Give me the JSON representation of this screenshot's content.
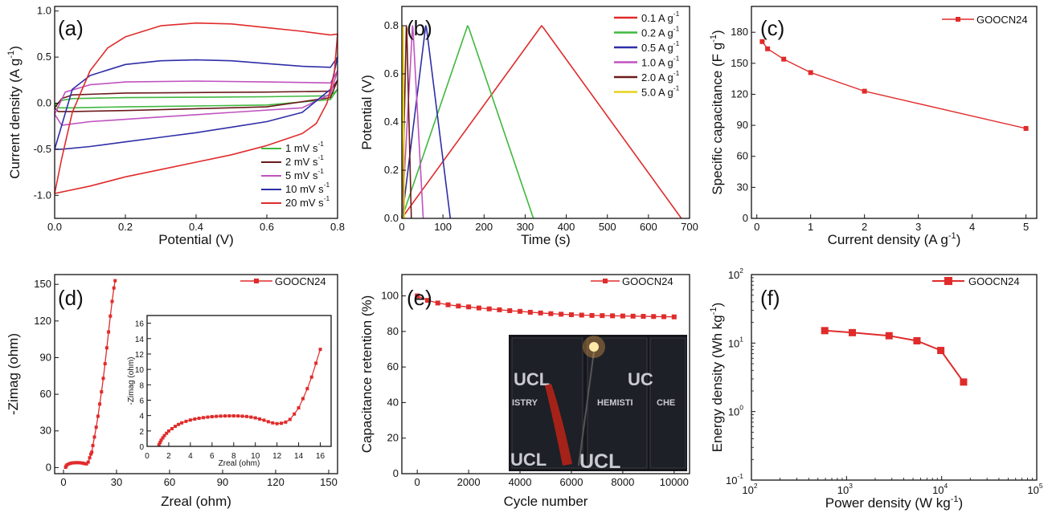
{
  "chart_data": [
    {
      "panel": "(a)",
      "type": "line",
      "xlabel": "Potential (V)",
      "ylabel": "Current density (A g⁻¹)",
      "xlim": [
        0,
        0.8
      ],
      "ylim": [
        -1.25,
        1.05
      ],
      "xticks": [
        0.0,
        0.2,
        0.4,
        0.6,
        0.8
      ],
      "yticks": [
        -1.0,
        -0.5,
        0.0,
        0.5,
        1.0
      ],
      "legend": "bottom-right",
      "series": [
        {
          "name": "1 mV s⁻¹",
          "color": "#3fb83f",
          "x_upper": [
            0.0,
            0.02,
            0.05,
            0.2,
            0.4,
            0.6,
            0.78,
            0.8
          ],
          "y_upper": [
            -0.02,
            0.03,
            0.05,
            0.06,
            0.065,
            0.07,
            0.08,
            0.15
          ],
          "x_lower": [
            0.8,
            0.78,
            0.6,
            0.4,
            0.2,
            0.05,
            0.01,
            0.0
          ],
          "y_lower": [
            0.15,
            0.04,
            -0.02,
            -0.03,
            -0.04,
            -0.05,
            -0.05,
            -0.02
          ]
        },
        {
          "name": "2 mV s⁻¹",
          "color": "#6b1a1a",
          "x_upper": [
            0.0,
            0.02,
            0.05,
            0.2,
            0.4,
            0.6,
            0.78,
            0.8
          ],
          "y_upper": [
            -0.05,
            0.05,
            0.09,
            0.11,
            0.115,
            0.12,
            0.13,
            0.25
          ],
          "x_lower": [
            0.8,
            0.78,
            0.6,
            0.4,
            0.2,
            0.05,
            0.01,
            0.0
          ],
          "y_lower": [
            0.25,
            0.06,
            -0.04,
            -0.06,
            -0.08,
            -0.09,
            -0.09,
            -0.05
          ]
        },
        {
          "name": "5 mV s⁻¹",
          "color": "#c052c0",
          "x_upper": [
            0.0,
            0.03,
            0.1,
            0.2,
            0.4,
            0.6,
            0.78,
            0.8
          ],
          "y_upper": [
            -0.12,
            0.12,
            0.2,
            0.23,
            0.24,
            0.23,
            0.22,
            0.35
          ],
          "x_lower": [
            0.8,
            0.78,
            0.7,
            0.5,
            0.3,
            0.1,
            0.02,
            0.0
          ],
          "y_lower": [
            0.35,
            0.1,
            -0.05,
            -0.1,
            -0.15,
            -0.2,
            -0.24,
            -0.12
          ]
        },
        {
          "name": "10 mV s⁻¹",
          "color": "#2e2ea8",
          "x_upper": [
            0.0,
            0.05,
            0.1,
            0.2,
            0.3,
            0.4,
            0.5,
            0.6,
            0.7,
            0.78,
            0.8
          ],
          "y_upper": [
            -0.5,
            0.15,
            0.3,
            0.42,
            0.46,
            0.47,
            0.46,
            0.43,
            0.4,
            0.39,
            0.5
          ],
          "x_lower": [
            0.8,
            0.78,
            0.7,
            0.6,
            0.5,
            0.4,
            0.3,
            0.2,
            0.1,
            0.02,
            0.0
          ],
          "y_lower": [
            0.5,
            0.15,
            -0.1,
            -0.2,
            -0.26,
            -0.32,
            -0.37,
            -0.42,
            -0.47,
            -0.5,
            -0.5
          ]
        },
        {
          "name": "20 mV s⁻¹",
          "color": "#e02b2b",
          "x_upper": [
            0.0,
            0.02,
            0.05,
            0.1,
            0.15,
            0.2,
            0.3,
            0.4,
            0.5,
            0.6,
            0.7,
            0.78,
            0.8
          ],
          "y_upper": [
            -0.98,
            -0.6,
            -0.1,
            0.35,
            0.6,
            0.72,
            0.84,
            0.87,
            0.86,
            0.82,
            0.78,
            0.74,
            0.75
          ],
          "x_lower": [
            0.8,
            0.79,
            0.77,
            0.74,
            0.7,
            0.6,
            0.5,
            0.4,
            0.3,
            0.2,
            0.1,
            0.0
          ],
          "y_lower": [
            0.75,
            0.3,
            0.0,
            -0.22,
            -0.33,
            -0.46,
            -0.56,
            -0.64,
            -0.72,
            -0.8,
            -0.9,
            -0.98
          ]
        }
      ]
    },
    {
      "panel": "(b)",
      "type": "line",
      "xlabel": "Time (s)",
      "ylabel": "Potential (V)",
      "xlim": [
        0,
        700
      ],
      "ylim": [
        0,
        0.88
      ],
      "xticks": [
        0,
        100,
        200,
        300,
        400,
        500,
        600,
        700
      ],
      "yticks": [
        0.0,
        0.2,
        0.4,
        0.6,
        0.8
      ],
      "legend": "top-right",
      "series": [
        {
          "name": "0.1 A g⁻¹",
          "color": "#e02b2b",
          "x": [
            0,
            8,
            340,
            345,
            680
          ],
          "y": [
            0.0,
            0.02,
            0.8,
            0.79,
            0.0
          ]
        },
        {
          "name": "0.2 A g⁻¹",
          "color": "#3fb83f",
          "x": [
            0,
            4,
            160,
            163,
            320
          ],
          "y": [
            0.0,
            0.02,
            0.8,
            0.79,
            0.0
          ]
        },
        {
          "name": "0.5 A g⁻¹",
          "color": "#2e2ea8",
          "x": [
            0,
            2,
            58,
            60,
            118
          ],
          "y": [
            0.0,
            0.02,
            0.8,
            0.79,
            0.0
          ]
        },
        {
          "name": "1.0 A g⁻¹",
          "color": "#c052c0",
          "x": [
            0,
            1,
            26,
            27,
            52
          ],
          "y": [
            0.0,
            0.02,
            0.8,
            0.79,
            0.0
          ]
        },
        {
          "name": "2.0 A g⁻¹",
          "color": "#6b1a1a",
          "x": [
            0,
            1,
            11,
            12,
            23
          ],
          "y": [
            0.0,
            0.02,
            0.8,
            0.79,
            0.0
          ]
        },
        {
          "name": "5.0 A g⁻¹",
          "color": "#e8d21c",
          "x": [
            0,
            0.5,
            3,
            3.5,
            6
          ],
          "y": [
            0.0,
            0.02,
            0.8,
            0.79,
            0.0
          ]
        }
      ]
    },
    {
      "panel": "(c)",
      "type": "line",
      "xlabel": "Current density (A g⁻¹)",
      "ylabel": "Specific capacitance (F g⁻¹)",
      "xlim": [
        -0.1,
        5.2
      ],
      "ylim": [
        0,
        205
      ],
      "xticks": [
        0,
        1,
        2,
        3,
        4,
        5
      ],
      "yticks": [
        0,
        30,
        60,
        90,
        120,
        150,
        180
      ],
      "legend": "top-right",
      "series": [
        {
          "name": "GOOCN24",
          "color": "#e02b2b",
          "marker": "square",
          "x": [
            0.1,
            0.2,
            0.5,
            1.0,
            2.0,
            5.0
          ],
          "y": [
            171,
            164,
            154,
            141,
            123,
            87
          ]
        }
      ]
    },
    {
      "panel": "(d)",
      "type": "line",
      "xlabel": "Zreal (ohm)",
      "ylabel": "-Zimag (ohm)",
      "xlim": [
        -5,
        155
      ],
      "ylim": [
        -5,
        158
      ],
      "xticks": [
        0,
        30,
        60,
        90,
        120,
        150
      ],
      "yticks": [
        0,
        30,
        60,
        90,
        120,
        150
      ],
      "legend": "top-right",
      "series": [
        {
          "name": "GOOCN24",
          "color": "#e02b2b",
          "marker": "square",
          "x": [
            1.2,
            1.5,
            2.0,
            3.0,
            4.0,
            5.0,
            6.0,
            7.0,
            8.0,
            9.0,
            10.0,
            11.0,
            12.0,
            13.0,
            14.0,
            14.8,
            15.5,
            16.0,
            16.6,
            17.5,
            18.5,
            19.5,
            20.5,
            21.5,
            22.5,
            23.5,
            24.5,
            25.5,
            26.5,
            27.5,
            28.5,
            29.2
          ],
          "y": [
            0.2,
            1.2,
            2.2,
            3.0,
            3.5,
            3.8,
            3.9,
            4.0,
            4.0,
            3.95,
            3.8,
            3.6,
            3.2,
            3.0,
            4.5,
            8.0,
            11.0,
            12.6,
            18.0,
            25.0,
            33.0,
            42.0,
            52.0,
            62.0,
            73.0,
            85.0,
            98.0,
            111.0,
            124.0,
            136.0,
            147.0,
            153.0
          ]
        },
        {
          "name": "",
          "inset": true,
          "color": "#e02b2b",
          "marker": "square",
          "xlabel": "Zreal (ohm)",
          "ylabel": "-Zimag (ohm)",
          "xlim": [
            0,
            17
          ],
          "ylim": [
            0,
            17
          ],
          "xticks": [
            0,
            2,
            4,
            6,
            8,
            10,
            12,
            14,
            16
          ],
          "yticks": [
            0,
            2,
            4,
            6,
            8,
            10,
            12,
            14,
            16
          ],
          "x": [
            1.1,
            1.2,
            1.3,
            1.45,
            1.6,
            1.8,
            2.0,
            2.3,
            2.6,
            2.9,
            3.2,
            3.6,
            4.0,
            4.4,
            4.8,
            5.2,
            5.6,
            6.0,
            6.4,
            6.8,
            7.2,
            7.6,
            8.0,
            8.4,
            8.8,
            9.2,
            9.6,
            10.0,
            10.4,
            10.8,
            11.2,
            11.6,
            12.0,
            12.4,
            12.8,
            13.2,
            13.6,
            14.0,
            14.4,
            14.8,
            15.2,
            15.6,
            16.0
          ],
          "y": [
            0.2,
            0.5,
            0.8,
            1.1,
            1.4,
            1.7,
            2.0,
            2.3,
            2.6,
            2.85,
            3.05,
            3.25,
            3.42,
            3.55,
            3.65,
            3.73,
            3.8,
            3.86,
            3.9,
            3.93,
            3.95,
            3.96,
            3.96,
            3.95,
            3.92,
            3.88,
            3.8,
            3.7,
            3.55,
            3.4,
            3.2,
            3.05,
            2.95,
            3.0,
            3.15,
            3.5,
            4.2,
            5.0,
            6.2,
            7.5,
            9.0,
            10.8,
            12.6
          ]
        }
      ]
    },
    {
      "panel": "(e)",
      "type": "line",
      "xlabel": "Cycle number",
      "ylabel": "Capacitance retention (%)",
      "xlim": [
        -600,
        10600
      ],
      "ylim": [
        0,
        112
      ],
      "xticks": [
        0,
        2000,
        4000,
        6000,
        8000,
        10000
      ],
      "yticks": [
        0,
        20,
        40,
        60,
        80,
        100
      ],
      "legend": "top-right",
      "series": [
        {
          "name": "GOOCN24",
          "color": "#e02b2b",
          "marker": "square",
          "x": [
            0,
            400,
            800,
            1200,
            1600,
            2000,
            2400,
            2800,
            3200,
            3600,
            4000,
            4400,
            4800,
            5200,
            5600,
            6000,
            6400,
            6800,
            7200,
            7600,
            8000,
            8400,
            8800,
            9200,
            9600,
            10000
          ],
          "y": [
            100,
            97.5,
            96.0,
            95.0,
            94.3,
            93.8,
            93.2,
            92.7,
            92.2,
            91.7,
            91.3,
            90.8,
            90.4,
            90.0,
            89.7,
            89.4,
            89.2,
            89.0,
            88.9,
            88.8,
            88.7,
            88.6,
            88.5,
            88.4,
            88.3,
            88.2
          ]
        }
      ],
      "inset_photo": {
        "texts": [
          "UCL",
          "UC",
          "ISTRY",
          "HEMISTI",
          "CHE",
          "UCL",
          "UCL"
        ]
      }
    },
    {
      "panel": "(f)",
      "type": "line",
      "xlabel": "Power density (W kg⁻¹)",
      "ylabel": "Energy density (Wh kg⁻¹)",
      "xscale": "log",
      "yscale": "log",
      "xlim": [
        100,
        100000
      ],
      "ylim": [
        0.1,
        100
      ],
      "xticks": [
        100,
        1000,
        10000,
        100000
      ],
      "yticks": [
        0.1,
        1,
        10,
        100
      ],
      "legend": "top-right",
      "series": [
        {
          "name": "GOOCN24",
          "color": "#e02b2b",
          "marker": "square",
          "x": [
            590,
            1150,
            2800,
            5500,
            9800,
            17000
          ],
          "y": [
            15.2,
            14.2,
            12.8,
            10.8,
            7.8,
            2.7
          ]
        }
      ]
    }
  ],
  "panels": {
    "a": {
      "label": "(a)",
      "xlabel": "Potential (V)",
      "ylabel_main": "Current density (A g",
      "ylabel_sup": "-1",
      "ylabel_end": ")",
      "xtick_labels": [
        "0.0",
        "0.2",
        "0.4",
        "0.6",
        "0.8"
      ],
      "ytick_labels": [
        "-1.0",
        "-0.5",
        "0.0",
        "0.5",
        "1.0"
      ],
      "legend": [
        {
          "main": "1 mV s",
          "sup": "-1"
        },
        {
          "main": "2 mV s",
          "sup": "-1"
        },
        {
          "main": "5 mV s",
          "sup": "-1"
        },
        {
          "main": "10 mV s",
          "sup": "-1"
        },
        {
          "main": "20 mV s",
          "sup": "-1"
        }
      ]
    },
    "b": {
      "label": "(b)",
      "xlabel": "Time (s)",
      "ylabel": "Potential (V)",
      "xtick_labels": [
        "0",
        "100",
        "200",
        "300",
        "400",
        "500",
        "600",
        "700"
      ],
      "ytick_labels": [
        "0.0",
        "0.2",
        "0.4",
        "0.6",
        "0.8"
      ],
      "legend": [
        {
          "main": "0.1 A g",
          "sup": "-1"
        },
        {
          "main": "0.2 A g",
          "sup": "-1"
        },
        {
          "main": "0.5 A g",
          "sup": "-1"
        },
        {
          "main": "1.0 A g",
          "sup": "-1"
        },
        {
          "main": "2.0 A g",
          "sup": "-1"
        },
        {
          "main": "5.0 A g",
          "sup": "-1"
        }
      ]
    },
    "c": {
      "label": "(c)",
      "xlabel_main": "Current density (A g",
      "xlabel_sup": "-1",
      "xlabel_end": ")",
      "ylabel_main": "Specific capacitance (F g",
      "ylabel_sup": "-1",
      "ylabel_end": ")",
      "xtick_labels": [
        "0",
        "1",
        "2",
        "3",
        "4",
        "5"
      ],
      "ytick_labels": [
        "0",
        "30",
        "60",
        "90",
        "120",
        "150",
        "180"
      ],
      "legend": "GOOCN24"
    },
    "d": {
      "label": "(d)",
      "xlabel": "Zreal (ohm)",
      "ylabel": "-Zimag (ohm)",
      "xtick_labels": [
        "0",
        "30",
        "60",
        "90",
        "120",
        "150"
      ],
      "ytick_labels": [
        "0",
        "30",
        "60",
        "90",
        "120",
        "150"
      ],
      "legend": "GOOCN24",
      "inset_xlabel": "Zreal (ohm)",
      "inset_ylabel": "-Zimag (ohm)",
      "inset_xtick_labels": [
        "0",
        "2",
        "4",
        "6",
        "8",
        "10",
        "12",
        "14",
        "16"
      ],
      "inset_ytick_labels": [
        "0",
        "2",
        "4",
        "6",
        "8",
        "10",
        "12",
        "14",
        "16"
      ]
    },
    "e": {
      "label": "(e)",
      "xlabel": "Cycle number",
      "ylabel": "Capacitance retention (%)",
      "xtick_labels": [
        "0",
        "2000",
        "4000",
        "6000",
        "8000",
        "10000"
      ],
      "ytick_labels": [
        "0",
        "20",
        "40",
        "60",
        "80",
        "100"
      ],
      "legend": "GOOCN24"
    },
    "f": {
      "label": "(f)",
      "xlabel_main": "Power density (W kg",
      "xlabel_sup": "-1",
      "xlabel_end": ")",
      "ylabel_main": "Energy density (Wh kg",
      "ylabel_sup": "-1",
      "ylabel_end": ")",
      "xtick_base": [
        "10",
        "10",
        "10",
        "10"
      ],
      "xtick_exp": [
        "2",
        "3",
        "4",
        "5"
      ],
      "ytick_base": [
        "10",
        "10",
        "10",
        "10"
      ],
      "ytick_exp": [
        "-1",
        "0",
        "1",
        "2"
      ],
      "legend": "GOOCN24"
    }
  }
}
